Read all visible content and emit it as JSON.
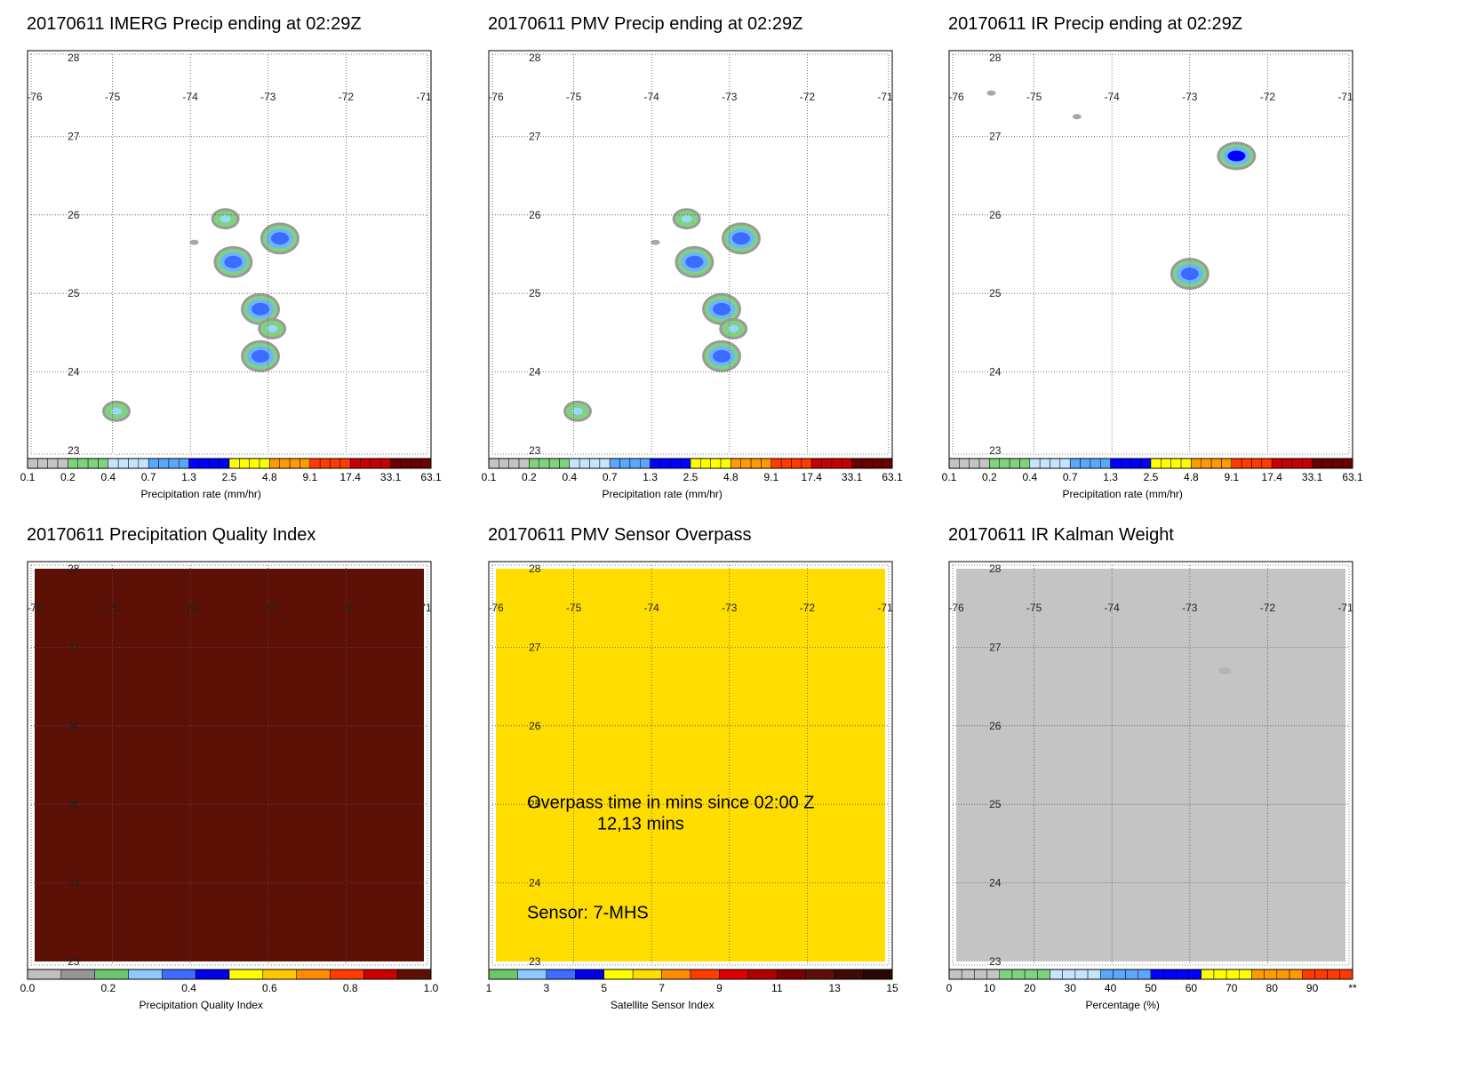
{
  "panels": [
    {
      "id": "imerg",
      "title": "20170611 IMERG Precip ending at 02:29Z",
      "lat_labels": [
        "28",
        "27",
        "26",
        "25",
        "24",
        "23"
      ],
      "lon_labels": [
        "-76",
        "-75",
        "-74",
        "-73",
        "-72",
        "-71"
      ],
      "colorbar": {
        "label": "Precipitation rate (mm/hr)",
        "ticks": [
          "0.1",
          "0.2",
          "0.4",
          "0.7",
          "1.3",
          "2.5",
          "4.8",
          "9.1",
          "17.4",
          "33.1",
          "63.1"
        ],
        "colors": [
          "#c4c4c4",
          "#7fd37f",
          "#c6e4ff",
          "#5aa7ff",
          "#0000ff",
          "#ffff00",
          "#ff9a00",
          "#ff3a00",
          "#c80000",
          "#6a0000"
        ]
      },
      "precip_cells": [
        {
          "lon": -73.45,
          "lat": 25.4,
          "intensity": "moderate"
        },
        {
          "lon": -73.55,
          "lat": 25.95,
          "intensity": "light"
        },
        {
          "lon": -72.85,
          "lat": 25.7,
          "intensity": "moderate"
        },
        {
          "lon": -73.1,
          "lat": 24.8,
          "intensity": "moderate"
        },
        {
          "lon": -72.95,
          "lat": 24.55,
          "intensity": "light"
        },
        {
          "lon": -73.1,
          "lat": 24.2,
          "intensity": "moderate"
        },
        {
          "lon": -74.95,
          "lat": 23.5,
          "intensity": "light"
        },
        {
          "lon": -73.95,
          "lat": 25.65,
          "intensity": "trace"
        }
      ]
    },
    {
      "id": "pmv",
      "title": "20170611 PMV Precip ending at 02:29Z",
      "lat_labels": [
        "28",
        "27",
        "26",
        "25",
        "24",
        "23"
      ],
      "lon_labels": [
        "-76",
        "-75",
        "-74",
        "-73",
        "-72",
        "-71"
      ],
      "colorbar": {
        "label": "Precipitation rate (mm/hr)",
        "ticks": [
          "0.1",
          "0.2",
          "0.4",
          "0.7",
          "1.3",
          "2.5",
          "4.8",
          "9.1",
          "17.4",
          "33.1",
          "63.1"
        ],
        "colors": [
          "#c4c4c4",
          "#7fd37f",
          "#c6e4ff",
          "#5aa7ff",
          "#0000ff",
          "#ffff00",
          "#ff9a00",
          "#ff3a00",
          "#c80000",
          "#6a0000"
        ]
      },
      "precip_cells": [
        {
          "lon": -73.45,
          "lat": 25.4,
          "intensity": "moderate"
        },
        {
          "lon": -73.55,
          "lat": 25.95,
          "intensity": "light"
        },
        {
          "lon": -72.85,
          "lat": 25.7,
          "intensity": "moderate"
        },
        {
          "lon": -73.1,
          "lat": 24.8,
          "intensity": "moderate"
        },
        {
          "lon": -72.95,
          "lat": 24.55,
          "intensity": "light"
        },
        {
          "lon": -73.1,
          "lat": 24.2,
          "intensity": "moderate"
        },
        {
          "lon": -74.95,
          "lat": 23.5,
          "intensity": "light"
        },
        {
          "lon": -73.95,
          "lat": 25.65,
          "intensity": "trace"
        }
      ]
    },
    {
      "id": "ir",
      "title": "20170611 IR Precip ending at 02:29Z",
      "lat_labels": [
        "28",
        "27",
        "26",
        "25",
        "24",
        "23"
      ],
      "lon_labels": [
        "-76",
        "-75",
        "-74",
        "-73",
        "-72",
        "-71"
      ],
      "colorbar": {
        "label": "Precipitation rate (mm/hr)",
        "ticks": [
          "0.1",
          "0.2",
          "0.4",
          "0.7",
          "1.3",
          "2.5",
          "4.8",
          "9.1",
          "17.4",
          "33.1",
          "63.1"
        ],
        "colors": [
          "#c4c4c4",
          "#7fd37f",
          "#c6e4ff",
          "#5aa7ff",
          "#0000ff",
          "#ffff00",
          "#ff9a00",
          "#ff3a00",
          "#c80000",
          "#6a0000"
        ]
      },
      "precip_cells": [
        {
          "lon": -72.4,
          "lat": 26.75,
          "intensity": "heavy"
        },
        {
          "lon": -73.0,
          "lat": 25.25,
          "intensity": "moderate"
        },
        {
          "lon": -75.55,
          "lat": 27.55,
          "intensity": "trace"
        },
        {
          "lon": -74.45,
          "lat": 27.25,
          "intensity": "trace"
        }
      ]
    },
    {
      "id": "pqi",
      "title": "20170611 Precipitation Quality Index",
      "lat_labels": [
        "28",
        "27",
        "26",
        "25",
        "24",
        "23"
      ],
      "lon_labels": [
        "-76",
        "-75",
        "-74",
        "-73",
        "-72",
        "-71"
      ],
      "fill_color": "#5c1006",
      "colorbar": {
        "label": "Precipitation Quality Index",
        "ticks": [
          "0.0",
          "0.2",
          "0.4",
          "0.6",
          "0.8",
          "1.0"
        ],
        "colors": [
          "#c0c0c0",
          "#969696",
          "#6cc66c",
          "#8ec8ff",
          "#3f6dff",
          "#0000e8",
          "#ffff00",
          "#ffc800",
          "#ff8c00",
          "#ff3c00",
          "#cc0000",
          "#5c1006"
        ]
      }
    },
    {
      "id": "sensor",
      "title": "20170611 PMV Sensor Overpass",
      "lat_labels": [
        "28",
        "27",
        "26",
        "25",
        "24",
        "23"
      ],
      "lon_labels": [
        "-76",
        "-75",
        "-74",
        "-73",
        "-72",
        "-71"
      ],
      "fill_color": "#ffdd00",
      "annotation_line1": "Overpass time in mins since 02:00 Z",
      "annotation_line2": "12,13 mins",
      "annotation_line3": "Sensor:   7-MHS",
      "colorbar": {
        "label": "Satellite Sensor Index",
        "ticks": [
          "1",
          "3",
          "5",
          "7",
          "9",
          "11",
          "13",
          "15"
        ],
        "colors": [
          "#6cc66c",
          "#8ec8ff",
          "#3f6dff",
          "#0000e8",
          "#ffff00",
          "#ffdd00",
          "#ff8c00",
          "#ff3c00",
          "#dd0000",
          "#b00000",
          "#7a0000",
          "#5c1006",
          "#3f0a04",
          "#2b0703"
        ]
      }
    },
    {
      "id": "kalman",
      "title": "20170611 IR Kalman Weight",
      "lat_labels": [
        "28",
        "27",
        "26",
        "25",
        "24",
        "23"
      ],
      "lon_labels": [
        "-76",
        "-75",
        "-74",
        "-73",
        "-72",
        "-71"
      ],
      "fill_color": "#c4c4c4",
      "colorbar": {
        "label": "Percentage (%)",
        "ticks": [
          "0",
          "10",
          "20",
          "30",
          "40",
          "50",
          "60",
          "70",
          "80",
          "90",
          "**"
        ],
        "colors": [
          "#c4c4c4",
          "#7fd37f",
          "#c6e4ff",
          "#5aa7ff",
          "#0000ff",
          "#ffff00",
          "#ff9a00",
          "#ff3a00"
        ]
      }
    }
  ]
}
